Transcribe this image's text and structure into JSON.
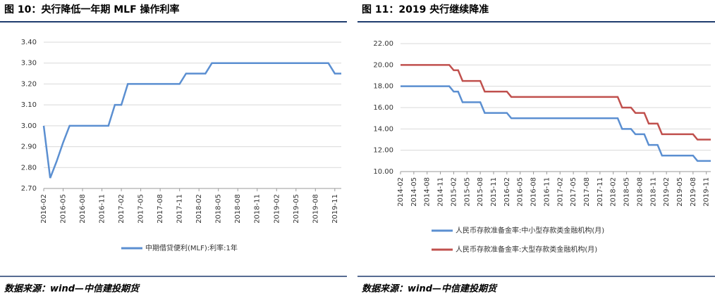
{
  "chart_data": [
    {
      "type": "line",
      "title": "图 10：央行降低一年期 MLF 操作利率",
      "source": "数据来源：wind—中信建投期货",
      "categories": [
        "2016-02",
        null,
        null,
        "2016-05",
        null,
        null,
        "2016-08",
        null,
        null,
        "2016-11",
        null,
        null,
        "2017-02",
        null,
        null,
        "2017-05",
        null,
        null,
        "2017-08",
        null,
        null,
        "2017-11",
        null,
        null,
        "2018-02",
        null,
        null,
        "2018-05",
        null,
        null,
        "2018-08",
        null,
        null,
        "2018-11",
        null,
        null,
        "2019-02",
        null,
        null,
        "2019-05",
        null,
        null,
        "2019-08",
        null,
        null,
        "2019-11",
        null
      ],
      "series": [
        {
          "name": "中期借贷便利(MLF):利率:1年",
          "color": "#5b8fd1",
          "values": [
            3,
            2.75,
            2.83,
            2.92,
            3,
            3,
            3,
            3,
            3,
            3,
            3,
            3.1,
            3.1,
            3.2,
            3.2,
            3.2,
            3.2,
            3.2,
            3.2,
            3.2,
            3.2,
            3.2,
            3.25,
            3.25,
            3.25,
            3.25,
            3.3,
            3.3,
            3.3,
            3.3,
            3.3,
            3.3,
            3.3,
            3.3,
            3.3,
            3.3,
            3.3,
            3.3,
            3.3,
            3.3,
            3.3,
            3.3,
            3.3,
            3.3,
            3.3,
            3.25,
            3.25
          ]
        }
      ],
      "ylim": [
        2.7,
        3.4
      ],
      "yticks": [
        {
          "value": 2.7,
          "label": "2.70"
        },
        {
          "value": 2.8,
          "label": "2.80"
        },
        {
          "value": 2.9,
          "label": "2.90"
        },
        {
          "value": 3,
          "label": "3.00"
        },
        {
          "value": 3.1,
          "label": "3.10"
        },
        {
          "value": 3.2,
          "label": "3.20"
        },
        {
          "value": 3.3,
          "label": "3.30"
        },
        {
          "value": 3.4,
          "label": "3.40"
        }
      ],
      "grid": true
    },
    {
      "type": "line",
      "title": "图 11：2019 央行继续降准",
      "source": "数据来源：wind—中信建投期货",
      "categories": [
        "2014-02",
        null,
        null,
        "2014-05",
        null,
        null,
        "2014-08",
        null,
        null,
        "2014-11",
        null,
        null,
        "2015-02",
        null,
        null,
        "2015-05",
        null,
        null,
        "2015-08",
        null,
        null,
        "2015-11",
        null,
        null,
        "2016-02",
        null,
        null,
        "2016-05",
        null,
        null,
        "2016-08",
        null,
        null,
        "2016-11",
        null,
        null,
        "2017-02",
        null,
        null,
        "2017-05",
        null,
        null,
        "2017-08",
        null,
        null,
        "2017-11",
        null,
        null,
        "2018-02",
        null,
        null,
        "2018-05",
        null,
        null,
        "2018-08",
        null,
        null,
        "2018-11",
        null,
        null,
        "2019-02",
        null,
        null,
        "2019-05",
        null,
        null,
        "2019-08",
        null,
        null,
        "2019-11",
        null
      ],
      "series": [
        {
          "name": "人民币存款准备金率:中小型存款类金融机构(月)",
          "color": "#5b8fd1",
          "values": [
            18,
            18,
            18,
            18,
            18,
            18,
            18,
            18,
            18,
            18,
            18,
            18,
            17.5,
            17.5,
            16.5,
            16.5,
            16.5,
            16.5,
            16.5,
            15.5,
            15.5,
            15.5,
            15.5,
            15.5,
            15.5,
            15,
            15,
            15,
            15,
            15,
            15,
            15,
            15,
            15,
            15,
            15,
            15,
            15,
            15,
            15,
            15,
            15,
            15,
            15,
            15,
            15,
            15,
            15,
            15,
            15,
            14,
            14,
            14,
            13.5,
            13.5,
            13.5,
            12.5,
            12.5,
            12.5,
            11.5,
            11.5,
            11.5,
            11.5,
            11.5,
            11.5,
            11.5,
            11.5,
            11,
            11,
            11,
            11
          ]
        },
        {
          "name": "人民币存款准备金率:大型存款类金融机构(月)",
          "color": "#c0504d",
          "values": [
            20,
            20,
            20,
            20,
            20,
            20,
            20,
            20,
            20,
            20,
            20,
            20,
            19.5,
            19.5,
            18.5,
            18.5,
            18.5,
            18.5,
            18.5,
            17.5,
            17.5,
            17.5,
            17.5,
            17.5,
            17.5,
            17,
            17,
            17,
            17,
            17,
            17,
            17,
            17,
            17,
            17,
            17,
            17,
            17,
            17,
            17,
            17,
            17,
            17,
            17,
            17,
            17,
            17,
            17,
            17,
            17,
            16,
            16,
            16,
            15.5,
            15.5,
            15.5,
            14.5,
            14.5,
            14.5,
            13.5,
            13.5,
            13.5,
            13.5,
            13.5,
            13.5,
            13.5,
            13.5,
            13,
            13,
            13,
            13
          ]
        }
      ],
      "ylim": [
        10,
        22
      ],
      "yticks": [
        {
          "value": 10,
          "label": "10.00"
        },
        {
          "value": 12,
          "label": "12.00"
        },
        {
          "value": 14,
          "label": "14.00"
        },
        {
          "value": 16,
          "label": "16.00"
        },
        {
          "value": 18,
          "label": "18.00"
        },
        {
          "value": 20,
          "label": "20.00"
        },
        {
          "value": 22,
          "label": "22.00"
        }
      ],
      "grid": true
    }
  ]
}
